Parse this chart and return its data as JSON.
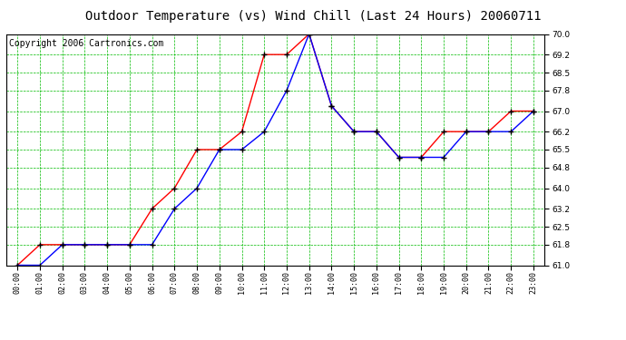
{
  "title": "Outdoor Temperature (vs) Wind Chill (Last 24 Hours) 20060711",
  "copyright": "Copyright 2006 Cartronics.com",
  "hours": [
    "00:00",
    "01:00",
    "02:00",
    "03:00",
    "04:00",
    "05:00",
    "06:00",
    "07:00",
    "08:00",
    "09:00",
    "10:00",
    "11:00",
    "12:00",
    "13:00",
    "14:00",
    "15:00",
    "16:00",
    "17:00",
    "18:00",
    "19:00",
    "20:00",
    "21:00",
    "22:00",
    "23:00"
  ],
  "temp_red": [
    61.0,
    61.8,
    61.8,
    61.8,
    61.8,
    61.8,
    63.2,
    64.0,
    65.5,
    65.5,
    66.2,
    69.2,
    69.2,
    70.0,
    67.2,
    66.2,
    66.2,
    65.2,
    65.2,
    66.2,
    66.2,
    66.2,
    67.0,
    67.0
  ],
  "wind_blue": [
    61.0,
    61.0,
    61.8,
    61.8,
    61.8,
    61.8,
    61.8,
    63.2,
    64.0,
    65.5,
    65.5,
    66.2,
    67.8,
    70.0,
    67.2,
    66.2,
    66.2,
    65.2,
    65.2,
    65.2,
    66.2,
    66.2,
    66.2,
    67.0
  ],
  "ylim_min": 61.0,
  "ylim_max": 70.0,
  "yticks": [
    61.0,
    61.8,
    62.5,
    63.2,
    64.0,
    64.8,
    65.5,
    66.2,
    67.0,
    67.8,
    68.5,
    69.2,
    70.0
  ],
  "red_color": "#ff0000",
  "blue_color": "#0000ff",
  "grid_color": "#00bb00",
  "bg_color": "#ffffff",
  "title_fontsize": 10,
  "copyright_fontsize": 7
}
